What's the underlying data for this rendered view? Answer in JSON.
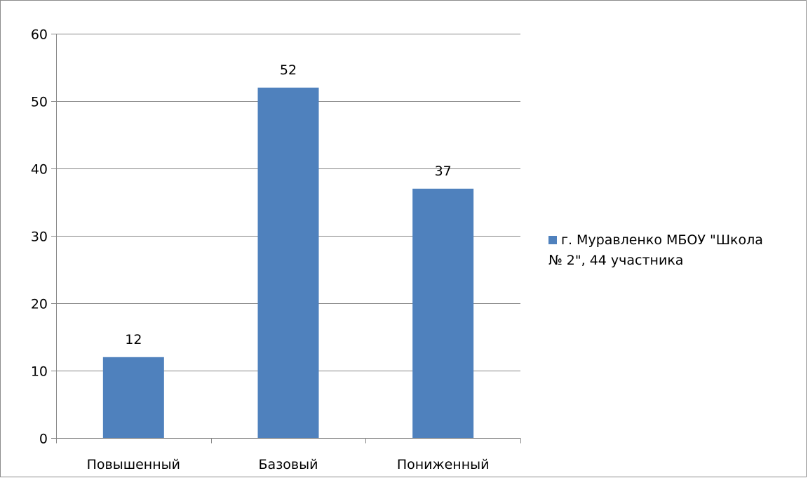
{
  "chart_data": {
    "type": "bar",
    "title": "",
    "xlabel": "",
    "ylabel": "",
    "categories": [
      "Повышенный",
      "Базовый",
      "Пониженный"
    ],
    "series": [
      {
        "name": "г. Муравленко МБОУ \"Школа № 2\", 44 участника",
        "values": [
          12,
          52,
          37
        ],
        "color": "#4f81bd"
      }
    ],
    "ylim": [
      0,
      60
    ],
    "yticks": [
      0,
      10,
      20,
      30,
      40,
      50,
      60
    ],
    "grid": true,
    "legend_position": "right",
    "data_labels": true,
    "colors": {
      "bar": "#4f81bd",
      "grid": "#868686",
      "axis": "#868686"
    }
  },
  "legend": {
    "line1": "г. Муравленко МБОУ \"Школа",
    "line2": "№ 2\", 44 участника"
  }
}
